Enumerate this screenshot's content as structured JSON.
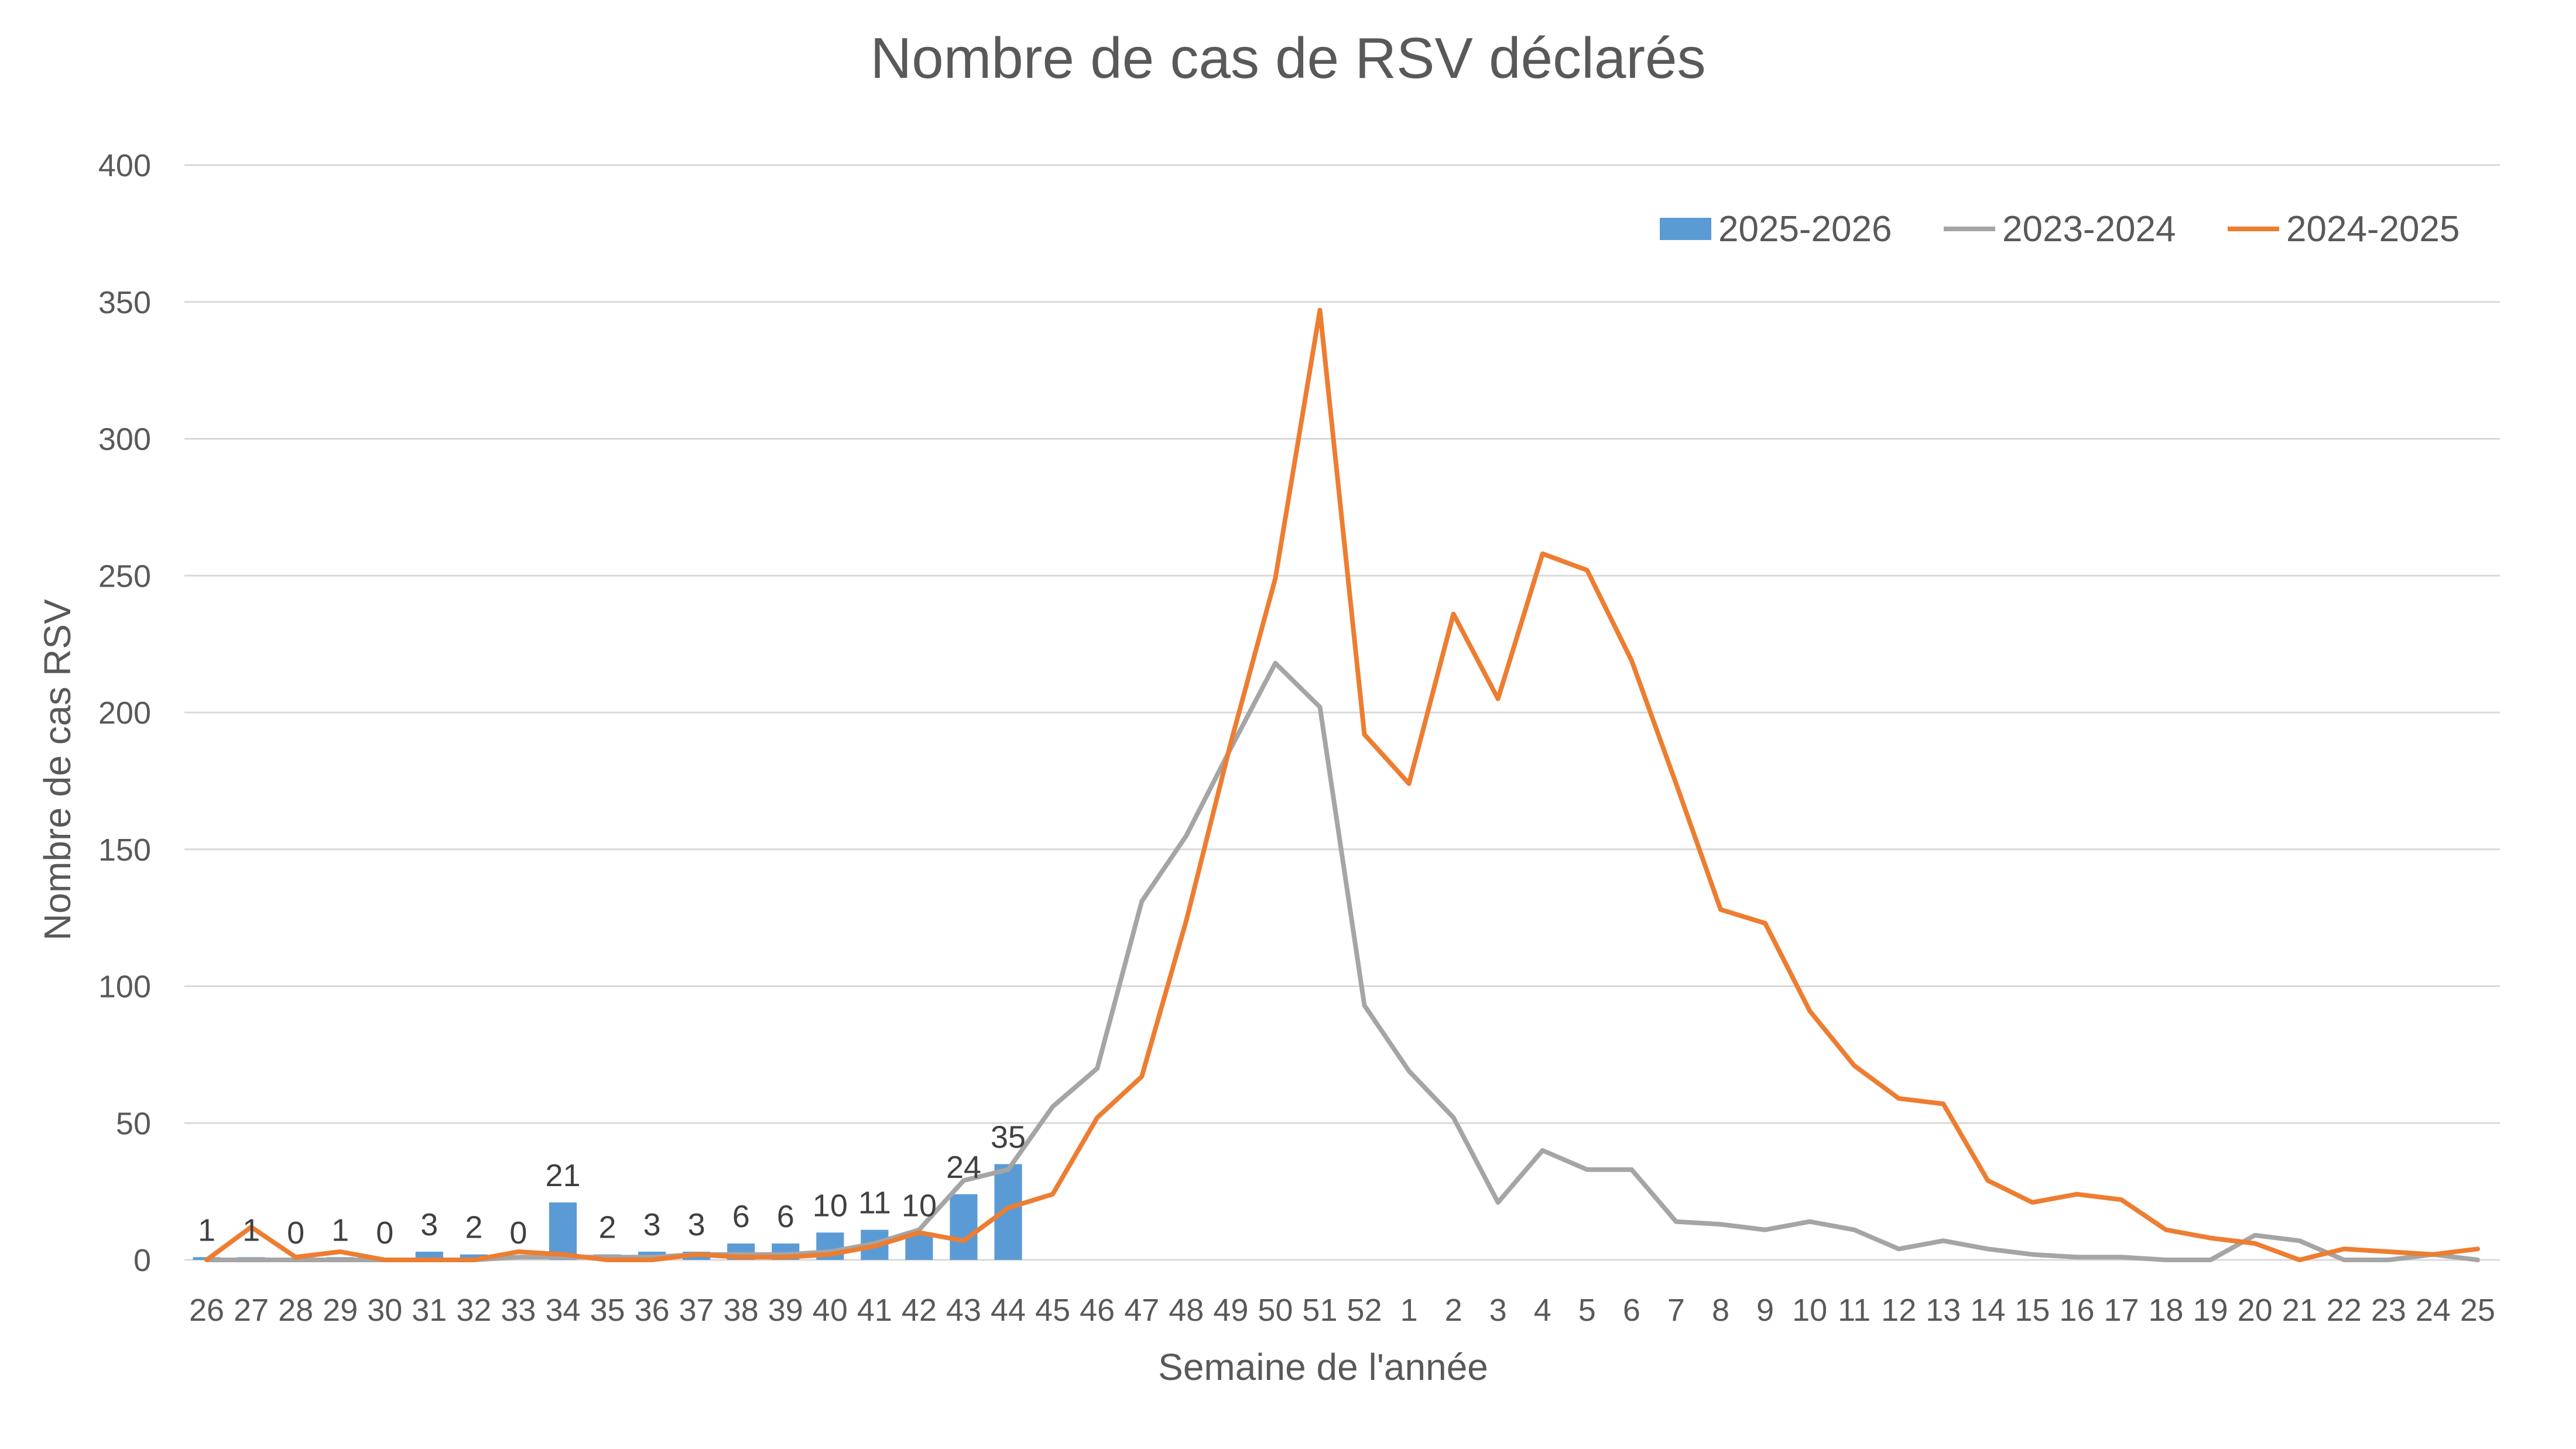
{
  "chart_data": {
    "type": "bar+line",
    "title": "Nombre de cas de RSV déclarés",
    "xlabel": "Semaine de l'année",
    "ylabel": "Nombre de cas RSV",
    "ylim": [
      0,
      400
    ],
    "yticks": [
      0,
      50,
      100,
      150,
      200,
      250,
      300,
      350,
      400
    ],
    "grid": "horizontal",
    "legend_position": "top-right",
    "categories": [
      "26",
      "27",
      "28",
      "29",
      "30",
      "31",
      "32",
      "33",
      "34",
      "35",
      "36",
      "37",
      "38",
      "39",
      "40",
      "41",
      "42",
      "43",
      "44",
      "45",
      "46",
      "47",
      "48",
      "49",
      "50",
      "51",
      "52",
      "1",
      "2",
      "3",
      "4",
      "5",
      "6",
      "7",
      "8",
      "9",
      "10",
      "11",
      "12",
      "13",
      "14",
      "15",
      "16",
      "17",
      "18",
      "19",
      "20",
      "21",
      "22",
      "23",
      "24",
      "25"
    ],
    "series": [
      {
        "name": "2025-2026",
        "type": "bar",
        "color": "#5b9bd5",
        "values": [
          1,
          1,
          0,
          1,
          0,
          3,
          2,
          0,
          21,
          2,
          3,
          3,
          6,
          6,
          10,
          11,
          10,
          24,
          35,
          null,
          null,
          null,
          null,
          null,
          null,
          null,
          null,
          null,
          null,
          null,
          null,
          null,
          null,
          null,
          null,
          null,
          null,
          null,
          null,
          null,
          null,
          null,
          null,
          null,
          null,
          null,
          null,
          null,
          null,
          null,
          null,
          null
        ],
        "data_labels": [
          "1",
          "1",
          "0",
          "1",
          "0",
          "3",
          "2",
          "0",
          "21",
          "2",
          "3",
          "3",
          "6",
          "6",
          "10",
          "11",
          "10",
          "24",
          "35"
        ]
      },
      {
        "name": "2023-2024",
        "type": "line",
        "color": "#a5a5a5",
        "values": [
          0,
          0,
          0,
          0,
          0,
          0,
          0,
          1,
          1,
          1,
          1,
          2,
          2,
          2,
          3,
          6,
          11,
          29,
          33,
          56,
          70,
          131,
          155,
          187,
          218,
          202,
          93,
          69,
          52,
          21,
          40,
          33,
          33,
          14,
          13,
          11,
          14,
          11,
          4,
          7,
          4,
          2,
          1,
          1,
          0,
          0,
          9,
          7,
          0,
          0,
          2,
          0
        ]
      },
      {
        "name": "2024-2025",
        "type": "line",
        "color": "#ed7d31",
        "values": [
          0,
          12,
          1,
          3,
          0,
          0,
          0,
          3,
          2,
          0,
          0,
          2,
          1,
          1,
          2,
          5,
          10,
          7,
          19,
          24,
          52,
          67,
          124,
          189,
          249,
          347,
          192,
          174,
          236,
          205,
          258,
          252,
          219,
          174,
          128,
          123,
          91,
          71,
          59,
          57,
          29,
          21,
          24,
          22,
          11,
          8,
          6,
          0,
          4,
          3,
          2,
          4
        ]
      }
    ]
  }
}
